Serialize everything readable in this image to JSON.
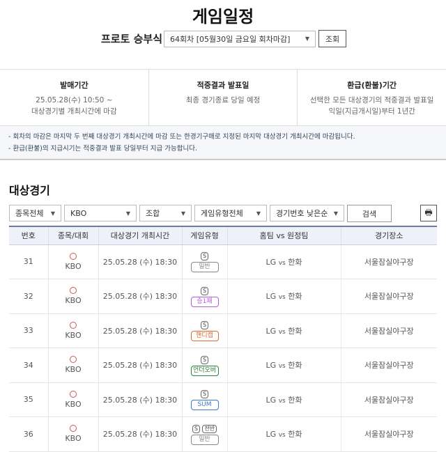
{
  "header": {
    "title": "게임일정",
    "round_label": "프로토 승부식",
    "round_select": "64회차 [05월30일 금요일 회차마감]",
    "query_button": "조회"
  },
  "info": [
    {
      "title": "발매기간",
      "lines": [
        "25.05.28(수) 10:50 ~",
        "대상경기별 개최시간에 마감"
      ]
    },
    {
      "title": "적중결과 발표일",
      "lines": [
        "최종 경기종료 당일 예정"
      ]
    },
    {
      "title": "환급(환불)기간",
      "lines": [
        "선택한 모든 대상경기의 적중결과 발표일",
        "익일(지급개시일)부터 1년간"
      ]
    }
  ],
  "notes": [
    "- 회차의 마감은 마지막 두 번째 대상경기 개최시간에 마감 또는 한경기구매로 지정된 마지막 대상경기 개최시간에 마감됩니다.",
    "- 환급(환불)의 지급시기는 적중결과 발표 당일부터 지급 가능합니다."
  ],
  "section_title": "대상경기",
  "filters": {
    "sport": "종목전체",
    "league": "KBO",
    "combo": "조합",
    "game_type": "게임유형전체",
    "sort": "경기번호 낮은순",
    "search": "검색"
  },
  "table": {
    "headers": [
      "번호",
      "종목/대회",
      "대상경기 개최시간",
      "게임유형",
      "홈팀 vs 원정팀",
      "경기장소"
    ],
    "rows": [
      {
        "no": "31",
        "league": "KBO",
        "time": "25.05.28 (수) 18:30",
        "badge": "S",
        "extra": "",
        "type": "일반",
        "color": "#888888",
        "home": "LG",
        "vs": "vs",
        "away": "한화",
        "venue": "서울잠실야구장"
      },
      {
        "no": "32",
        "league": "KBO",
        "time": "25.05.28 (수) 18:30",
        "badge": "S",
        "extra": "",
        "type": "승1패",
        "color": "#b05ee0",
        "home": "LG",
        "vs": "vs",
        "away": "한화",
        "venue": "서울잠실야구장"
      },
      {
        "no": "33",
        "league": "KBO",
        "time": "25.05.28 (수) 18:30",
        "badge": "S",
        "extra": "",
        "type": "핸디캡",
        "color": "#e06a30",
        "home": "LG",
        "vs": "vs",
        "away": "한화",
        "venue": "서울잠실야구장"
      },
      {
        "no": "34",
        "league": "KBO",
        "time": "25.05.28 (수) 18:30",
        "badge": "S",
        "extra": "",
        "type": "언더오버",
        "color": "#2e8040",
        "home": "LG",
        "vs": "vs",
        "away": "한화",
        "venue": "서울잠실야구장"
      },
      {
        "no": "35",
        "league": "KBO",
        "time": "25.05.28 (수) 18:30",
        "badge": "S",
        "extra": "",
        "type": "SUM",
        "color": "#3a78d0",
        "home": "LG",
        "vs": "vs",
        "away": "한화",
        "venue": "서울잠실야구장"
      },
      {
        "no": "36",
        "league": "KBO",
        "time": "25.05.28 (수) 18:30",
        "badge": "S",
        "extra": "전반",
        "type": "일반",
        "color": "#888888",
        "home": "LG",
        "vs": "vs",
        "away": "한화",
        "venue": "서울잠실야구장"
      }
    ]
  }
}
